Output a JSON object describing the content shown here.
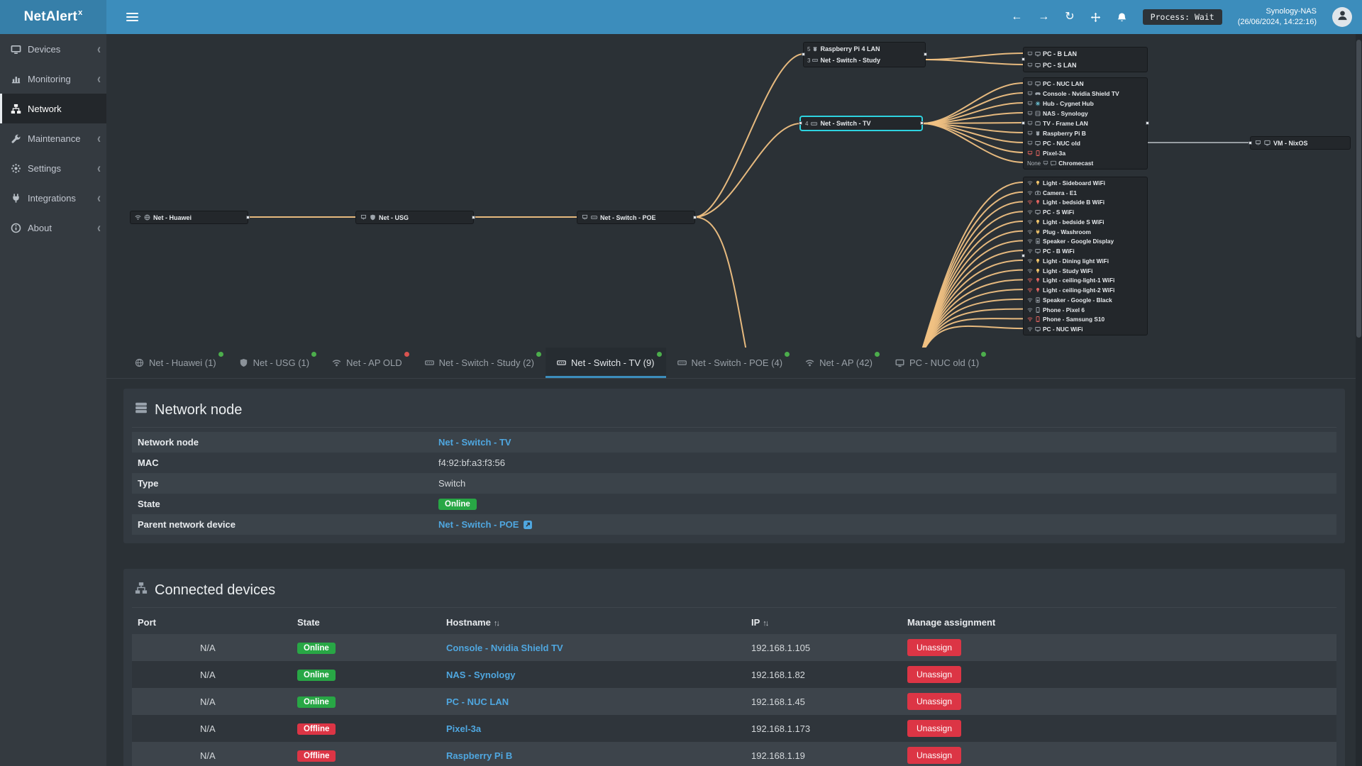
{
  "colors": {
    "online": "#4cae4c",
    "offline": "#d9534f",
    "accent": "#3c8dbc",
    "link": "#4fa7e0",
    "topology_line": "#f0c183",
    "badge_online": "#28a745",
    "badge_offline": "#dc3545",
    "icon_yellow": "#f0c36a",
    "icon_red": "#e0635f",
    "icon_gray": "#9fa6ad",
    "icon_blue": "#6cc3d5"
  },
  "app": {
    "title": "NetAlert",
    "title_sup": "x"
  },
  "topbar": {
    "process_badge": "Process: Wait",
    "host_name": "Synology-NAS",
    "host_time": "(26/06/2024, 14:22:16)"
  },
  "sidebar": {
    "items": [
      {
        "label": "Devices",
        "icon": "pc",
        "chevron": true
      },
      {
        "label": "Monitoring",
        "icon": "chart",
        "chevron": true
      },
      {
        "label": "Network",
        "icon": "sitemap",
        "active": true,
        "chevron": false
      },
      {
        "label": "Maintenance",
        "icon": "wrench",
        "chevron": true
      },
      {
        "label": "Settings",
        "icon": "gear",
        "chevron": true
      },
      {
        "label": "Integrations",
        "icon": "plug",
        "chevron": true
      },
      {
        "label": "About",
        "icon": "info",
        "chevron": true
      }
    ]
  },
  "topology": {
    "chain": [
      {
        "name": "Net - Huawei",
        "icons": [
          "wifi",
          "globe"
        ]
      },
      {
        "name": "Net - USG",
        "icons": [
          "eth",
          "shield"
        ]
      },
      {
        "name": "Net - Switch - POE",
        "icons": [
          "eth",
          "switch"
        ]
      }
    ],
    "study_group": [
      {
        "name": "Raspberry Pi 4 LAN",
        "port": "5",
        "icon": "raspberry"
      },
      {
        "name": "Net - Switch - Study",
        "port": "3",
        "icon": "switch"
      }
    ],
    "selected_node": {
      "name": "Net - Switch - TV",
      "port": "4",
      "icon": "switch"
    },
    "pc_group": [
      {
        "name": "PC - B LAN",
        "icon": "pc"
      },
      {
        "name": "PC - S LAN",
        "icon": "pc"
      }
    ],
    "lan_group": [
      {
        "name": "PC - NUC LAN",
        "icon": "pc"
      },
      {
        "name": "Console - Nvidia Shield TV",
        "icon": "console"
      },
      {
        "name": "Hub - Cygnet Hub",
        "icon": "hub",
        "color": "#6cc3d5"
      },
      {
        "name": "NAS - Synology",
        "icon": "nas"
      },
      {
        "name": "TV - Frame LAN",
        "icon": "tv"
      },
      {
        "name": "Raspberry Pi B",
        "icon": "raspberry"
      },
      {
        "name": "PC - NUC old",
        "icon": "pc"
      },
      {
        "name": "Pixel-3a",
        "icon": "phone",
        "color": "#e0635f"
      },
      {
        "name": "Chromecast",
        "icon": "cast",
        "port": "None"
      }
    ],
    "wifi_group": [
      {
        "name": "Light - Sideboard WiFi",
        "icon": "light",
        "color": "#f0c36a"
      },
      {
        "name": "Camera - E1",
        "icon": "camera"
      },
      {
        "name": "Light - bedside B WiFi",
        "icon": "light",
        "color": "#e0635f"
      },
      {
        "name": "PC - S WiFi",
        "icon": "pc"
      },
      {
        "name": "Light - bedside S WiFi",
        "icon": "light",
        "color": "#f0c36a"
      },
      {
        "name": "Plug - Washroom",
        "icon": "plug",
        "color": "#f0c36a"
      },
      {
        "name": "Speaker - Google Display",
        "icon": "speaker"
      },
      {
        "name": "PC - B WiFi",
        "icon": "pc"
      },
      {
        "name": "Light - Dining light WiFi",
        "icon": "light",
        "color": "#f0c36a"
      },
      {
        "name": "Light - Study WiFi",
        "icon": "light",
        "color": "#f0c36a"
      },
      {
        "name": "Light - ceiling-light-1 WiFi",
        "icon": "light",
        "color": "#e0635f"
      },
      {
        "name": "Light - ceiling-light-2 WiFi",
        "icon": "light",
        "color": "#e0635f"
      },
      {
        "name": "Speaker - Google - Black",
        "icon": "speaker"
      },
      {
        "name": "Phone - Pixel 6",
        "icon": "phone"
      },
      {
        "name": "Phone - Samsung S10",
        "icon": "phone",
        "color": "#e0635f"
      },
      {
        "name": "PC - NUC WiFi",
        "icon": "pc"
      }
    ],
    "vm_node": {
      "name": "VM - NixOS",
      "icons": [
        "eth",
        "vm"
      ]
    }
  },
  "tabs": [
    {
      "label": "Net - Huawei (1)",
      "icon": "globe",
      "status": "online"
    },
    {
      "label": "Net - USG (1)",
      "icon": "shield",
      "status": "online"
    },
    {
      "label": "Net - AP OLD",
      "icon": "wifi",
      "status": "offline"
    },
    {
      "label": "Net - Switch - Study (2)",
      "icon": "switch",
      "status": "online"
    },
    {
      "label": "Net - Switch - TV (9)",
      "icon": "switch",
      "status": "online",
      "active": true
    },
    {
      "label": "Net - Switch - POE (4)",
      "icon": "switch",
      "status": "online"
    },
    {
      "label": "Net - AP (42)",
      "icon": "wifi",
      "status": "online"
    },
    {
      "label": "PC - NUC old (1)",
      "icon": "pc",
      "status": "online"
    }
  ],
  "node_panel": {
    "title": "Network node",
    "fields": [
      {
        "label": "Network node",
        "value": "Net - Switch - TV",
        "type": "link"
      },
      {
        "label": "MAC",
        "value": "f4:92:bf:a3:f3:56",
        "type": "text"
      },
      {
        "label": "Type",
        "value": "Switch",
        "type": "text"
      },
      {
        "label": "State",
        "value": "Online",
        "type": "badge-online"
      },
      {
        "label": "Parent network device",
        "value": "Net - Switch - POE",
        "type": "link-ext"
      }
    ]
  },
  "devices_panel": {
    "title": "Connected devices",
    "columns": [
      {
        "label": "Port",
        "sortable": false
      },
      {
        "label": "State",
        "sortable": false
      },
      {
        "label": "Hostname",
        "sortable": true
      },
      {
        "label": "IP",
        "sortable": true
      },
      {
        "label": "Manage assignment",
        "sortable": false
      }
    ],
    "unassign_label": "Unassign",
    "rows": [
      {
        "port": "N/A",
        "state": "Online",
        "hostname": "Console - Nvidia Shield TV",
        "ip": "192.168.1.105"
      },
      {
        "port": "N/A",
        "state": "Online",
        "hostname": "NAS - Synology",
        "ip": "192.168.1.82"
      },
      {
        "port": "N/A",
        "state": "Online",
        "hostname": "PC - NUC LAN",
        "ip": "192.168.1.45"
      },
      {
        "port": "N/A",
        "state": "Offline",
        "hostname": "Pixel-3a",
        "ip": "192.168.1.173"
      },
      {
        "port": "N/A",
        "state": "Offline",
        "hostname": "Raspberry Pi B",
        "ip": "192.168.1.19"
      }
    ]
  }
}
